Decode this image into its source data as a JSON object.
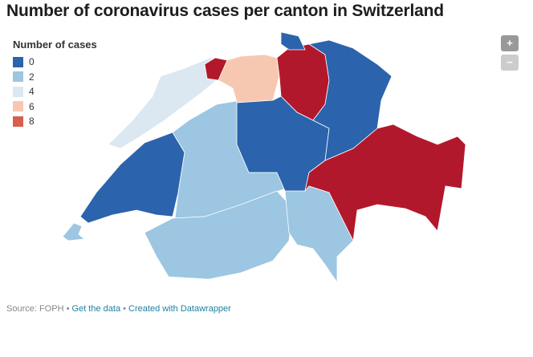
{
  "header": {
    "title": "Number of coronavirus cases per canton in Switzerland"
  },
  "legend": {
    "title": "Number of cases",
    "items": [
      {
        "value": 0,
        "color": "#2b63ad"
      },
      {
        "value": 2,
        "color": "#9cc6e1"
      },
      {
        "value": 4,
        "color": "#dbe8f1"
      },
      {
        "value": 6,
        "color": "#f7c8b1"
      },
      {
        "value": 8,
        "color": "#d6604d"
      }
    ]
  },
  "map": {
    "regions": [
      {
        "color": "#9cc6e1"
      },
      {
        "color": "#2b63ad"
      },
      {
        "color": "#dbe8f1"
      },
      {
        "color": "#9cc6e1"
      },
      {
        "color": "#9cc6e1"
      },
      {
        "color": "#9cc6e1"
      },
      {
        "color": "#f7c8b1"
      },
      {
        "color": "#b2182b"
      },
      {
        "color": "#2b63ad"
      },
      {
        "color": "#2b63ad"
      },
      {
        "color": "#b2182b"
      },
      {
        "color": "#2b63ad"
      },
      {
        "color": "#b2182b"
      }
    ]
  },
  "controls": {
    "zoom_in": "+",
    "zoom_out": "−"
  },
  "footer": {
    "source": "Source: FOPH",
    "separator": "•",
    "data_link": "Get the data",
    "credit_link": "Created with Datawrapper"
  }
}
